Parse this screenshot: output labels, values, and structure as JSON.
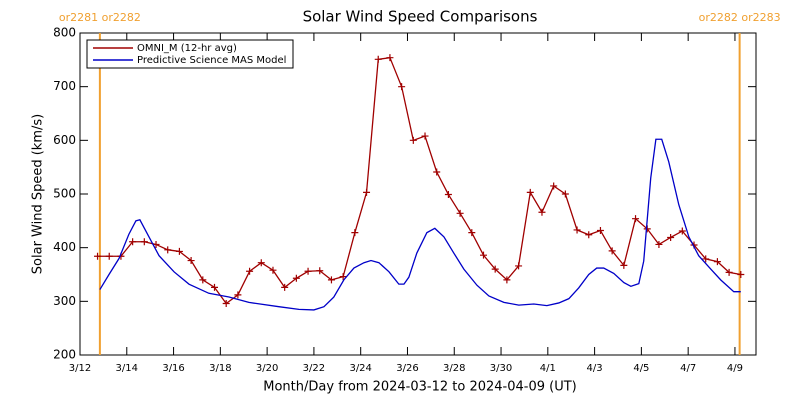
{
  "chart_data": {
    "type": "line",
    "title": "Solar Wind Speed Comparisons",
    "xlabel": "Month/Day from 2024-03-12 to 2024-04-09 (UT)",
    "ylabel": "Solar Wind Speed (km/s)",
    "xlim": [
      0,
      28.9
    ],
    "xticks": [
      {
        "value": 0,
        "label": "3/12"
      },
      {
        "value": 2,
        "label": "3/14"
      },
      {
        "value": 4,
        "label": "3/16"
      },
      {
        "value": 6,
        "label": "3/18"
      },
      {
        "value": 8,
        "label": "3/20"
      },
      {
        "value": 10,
        "label": "3/22"
      },
      {
        "value": 12,
        "label": "3/24"
      },
      {
        "value": 14,
        "label": "3/26"
      },
      {
        "value": 16,
        "label": "3/28"
      },
      {
        "value": 18,
        "label": "3/30"
      },
      {
        "value": 20,
        "label": "4/1"
      },
      {
        "value": 22,
        "label": "4/3"
      },
      {
        "value": 24,
        "label": "4/5"
      },
      {
        "value": 26,
        "label": "4/7"
      },
      {
        "value": 28,
        "label": "4/9"
      }
    ],
    "ylim": [
      200,
      800
    ],
    "yticks": [
      200,
      300,
      400,
      500,
      600,
      700,
      800
    ],
    "legend": "upper left",
    "annotations": [
      {
        "text": "or2281 or2282",
        "x": 0.85,
        "color": "#f0a030"
      },
      {
        "text": "or2282 or2283",
        "x": 28.2,
        "color": "#f0a030"
      }
    ],
    "series": [
      {
        "name": "OMNI_M (12-hr avg)",
        "color": "#a00000",
        "marker": "+",
        "x": [
          0.75,
          1.25,
          1.75,
          2.25,
          2.75,
          3.25,
          3.75,
          4.25,
          4.75,
          5.25,
          5.75,
          6.25,
          6.75,
          7.25,
          7.75,
          8.25,
          8.75,
          9.25,
          9.75,
          10.25,
          10.75,
          11.25,
          11.75,
          12.25,
          12.75,
          13.25,
          13.75,
          14.25,
          14.75,
          15.25,
          15.75,
          16.25,
          16.75,
          17.25,
          17.75,
          18.25,
          18.75,
          19.25,
          19.75,
          20.25,
          20.75,
          21.25,
          21.75,
          22.25,
          22.75,
          23.25,
          23.75,
          24.25,
          24.75,
          25.25,
          25.75,
          26.25,
          26.75,
          27.25,
          27.75,
          28.25
        ],
        "values": [
          384,
          384,
          384,
          411,
          411,
          406,
          396,
          393,
          376,
          340,
          326,
          296,
          312,
          356,
          372,
          358,
          326,
          343,
          356,
          357,
          340,
          346,
          428,
          503,
          751,
          754,
          700,
          600,
          608,
          541,
          499,
          464,
          428,
          386,
          360,
          340,
          366,
          503,
          466,
          515,
          500,
          433,
          424,
          432,
          394,
          367,
          454,
          435,
          406,
          419,
          431,
          405,
          379,
          374,
          354,
          350
        ]
      },
      {
        "name": "Predictive Science MAS Model",
        "color": "#0000c8",
        "x": [
          0.85,
          1.24,
          1.67,
          2.09,
          2.39,
          2.56,
          2.95,
          3.38,
          4.02,
          4.66,
          5.51,
          6.37,
          7.22,
          8.5,
          9.36,
          10.0,
          10.43,
          10.85,
          11.28,
          11.71,
          12.14,
          12.44,
          12.78,
          13.21,
          13.63,
          13.85,
          14.06,
          14.4,
          14.83,
          15.17,
          15.56,
          15.98,
          16.41,
          16.97,
          17.48,
          18.12,
          18.76,
          19.4,
          19.96,
          20.47,
          20.9,
          21.32,
          21.75,
          22.09,
          22.39,
          22.82,
          23.25,
          23.55,
          23.89,
          24.1,
          24.4,
          24.62,
          24.87,
          25.17,
          25.6,
          26.03,
          26.45,
          26.97,
          27.39,
          27.95,
          28.25
        ],
        "values": [
          322,
          350,
          380,
          425,
          450,
          452,
          420,
          385,
          355,
          332,
          315,
          308,
          298,
          290,
          285,
          284,
          290,
          308,
          340,
          362,
          372,
          376,
          372,
          355,
          332,
          332,
          345,
          390,
          428,
          436,
          420,
          390,
          360,
          330,
          310,
          298,
          293,
          295,
          292,
          297,
          305,
          325,
          350,
          362,
          362,
          352,
          335,
          328,
          333,
          375,
          530,
          602,
          602,
          560,
          480,
          420,
          385,
          360,
          340,
          318,
          318
        ]
      }
    ]
  }
}
